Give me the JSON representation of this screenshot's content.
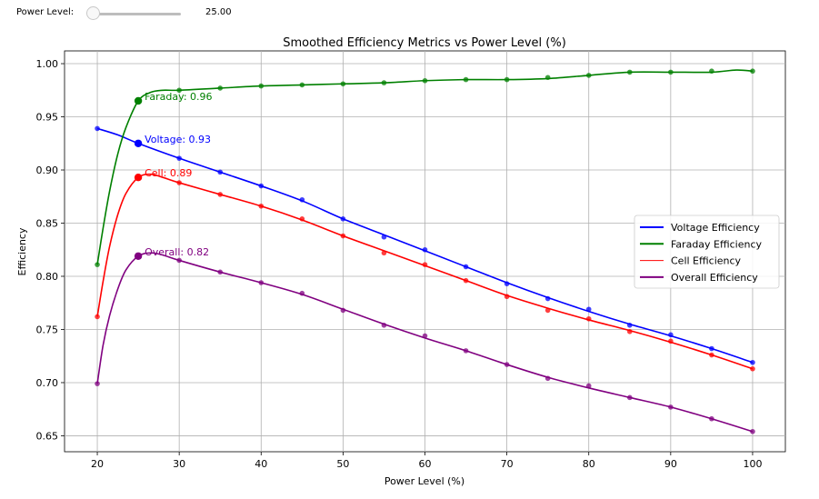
{
  "slider": {
    "label": "Power Level:",
    "value_text": "25.00",
    "value": 25,
    "min": 20,
    "max": 100
  },
  "chart_data": {
    "type": "line",
    "title": "Smoothed Efficiency Metrics vs Power Level (%)",
    "xlabel": "Power Level (%)",
    "ylabel": "Efficiency",
    "xlim": [
      16,
      104
    ],
    "ylim": [
      0.635,
      1.012
    ],
    "xticks": [
      20,
      30,
      40,
      50,
      60,
      70,
      80,
      90,
      100
    ],
    "xtick_labels": [
      "20",
      "30",
      "40",
      "50",
      "60",
      "70",
      "80",
      "90",
      "100"
    ],
    "yticks": [
      0.65,
      0.7,
      0.75,
      0.8,
      0.85,
      0.9,
      0.95,
      1.0
    ],
    "ytick_labels": [
      "0.65",
      "0.70",
      "0.75",
      "0.80",
      "0.85",
      "0.90",
      "0.95",
      "1.00"
    ],
    "grid": true,
    "legend_position": "center-right",
    "x": [
      20,
      25,
      30,
      35,
      40,
      45,
      50,
      55,
      60,
      65,
      70,
      75,
      80,
      85,
      90,
      95,
      100
    ],
    "series": [
      {
        "name": "Voltage Efficiency",
        "color": "#0000ff",
        "values": [
          0.939,
          0.925,
          0.911,
          0.898,
          0.885,
          0.872,
          0.854,
          0.837,
          0.825,
          0.809,
          0.793,
          0.779,
          0.769,
          0.754,
          0.745,
          0.732,
          0.719
        ],
        "smooth": [
          [
            20,
            0.939
          ],
          [
            22.5,
            0.933
          ],
          [
            25,
            0.925
          ],
          [
            30,
            0.911
          ],
          [
            35,
            0.898
          ],
          [
            40,
            0.885
          ],
          [
            45,
            0.871
          ],
          [
            50,
            0.854
          ],
          [
            55,
            0.839
          ],
          [
            60,
            0.824
          ],
          [
            65,
            0.809
          ],
          [
            70,
            0.794
          ],
          [
            75,
            0.78
          ],
          [
            80,
            0.767
          ],
          [
            85,
            0.755
          ],
          [
            90,
            0.744
          ],
          [
            95,
            0.732
          ],
          [
            100,
            0.719
          ]
        ]
      },
      {
        "name": "Faraday Efficiency",
        "color": "#008000",
        "values": [
          0.811,
          0.965,
          0.975,
          0.977,
          0.979,
          0.98,
          0.981,
          0.982,
          0.984,
          0.985,
          0.985,
          0.987,
          0.989,
          0.992,
          0.992,
          0.993,
          0.993
        ],
        "smooth": [
          [
            20,
            0.811
          ],
          [
            20.7,
            0.845
          ],
          [
            21.5,
            0.88
          ],
          [
            22.5,
            0.915
          ],
          [
            23.5,
            0.94
          ],
          [
            25,
            0.965
          ],
          [
            26.5,
            0.973
          ],
          [
            28,
            0.975
          ],
          [
            30,
            0.975
          ],
          [
            35,
            0.977
          ],
          [
            40,
            0.979
          ],
          [
            45,
            0.98
          ],
          [
            50,
            0.981
          ],
          [
            55,
            0.982
          ],
          [
            60,
            0.984
          ],
          [
            65,
            0.985
          ],
          [
            70,
            0.985
          ],
          [
            75,
            0.986
          ],
          [
            80,
            0.989
          ],
          [
            85,
            0.992
          ],
          [
            90,
            0.992
          ],
          [
            95,
            0.992
          ],
          [
            98,
            0.994
          ],
          [
            100,
            0.993
          ]
        ]
      },
      {
        "name": "Cell Efficiency",
        "color": "#ff0000",
        "values": [
          0.762,
          0.893,
          0.888,
          0.877,
          0.866,
          0.854,
          0.838,
          0.822,
          0.811,
          0.796,
          0.781,
          0.768,
          0.76,
          0.748,
          0.739,
          0.726,
          0.713
        ],
        "smooth": [
          [
            20,
            0.762
          ],
          [
            20.7,
            0.795
          ],
          [
            21.5,
            0.828
          ],
          [
            22.5,
            0.858
          ],
          [
            23.5,
            0.878
          ],
          [
            25,
            0.893
          ],
          [
            26.5,
            0.896
          ],
          [
            28,
            0.893
          ],
          [
            30,
            0.888
          ],
          [
            35,
            0.877
          ],
          [
            40,
            0.866
          ],
          [
            45,
            0.853
          ],
          [
            50,
            0.838
          ],
          [
            55,
            0.824
          ],
          [
            60,
            0.81
          ],
          [
            65,
            0.796
          ],
          [
            70,
            0.782
          ],
          [
            75,
            0.77
          ],
          [
            80,
            0.759
          ],
          [
            85,
            0.749
          ],
          [
            90,
            0.738
          ],
          [
            95,
            0.726
          ],
          [
            100,
            0.713
          ]
        ]
      },
      {
        "name": "Overall Efficiency",
        "color": "#800080",
        "values": [
          0.699,
          0.819,
          0.815,
          0.804,
          0.794,
          0.784,
          0.768,
          0.754,
          0.744,
          0.73,
          0.717,
          0.704,
          0.697,
          0.686,
          0.677,
          0.666,
          0.654
        ],
        "smooth": [
          [
            20,
            0.699
          ],
          [
            20.7,
            0.735
          ],
          [
            21.5,
            0.763
          ],
          [
            22.5,
            0.788
          ],
          [
            23.5,
            0.806
          ],
          [
            25,
            0.819
          ],
          [
            26.5,
            0.822
          ],
          [
            28,
            0.82
          ],
          [
            30,
            0.815
          ],
          [
            35,
            0.804
          ],
          [
            40,
            0.794
          ],
          [
            45,
            0.783
          ],
          [
            50,
            0.769
          ],
          [
            55,
            0.755
          ],
          [
            60,
            0.742
          ],
          [
            65,
            0.73
          ],
          [
            70,
            0.717
          ],
          [
            75,
            0.705
          ],
          [
            80,
            0.695
          ],
          [
            85,
            0.686
          ],
          [
            90,
            0.677
          ],
          [
            95,
            0.666
          ],
          [
            100,
            0.654
          ]
        ]
      }
    ],
    "annotations": [
      {
        "text": "Faraday: 0.96",
        "x": 25,
        "y": 0.965,
        "color": "#008000"
      },
      {
        "text": "Voltage: 0.93",
        "x": 25,
        "y": 0.925,
        "color": "#0000ff"
      },
      {
        "text": "Cell: 0.89",
        "x": 25,
        "y": 0.893,
        "color": "#ff0000"
      },
      {
        "text": "Overall: 0.82",
        "x": 25,
        "y": 0.819,
        "color": "#800080"
      }
    ]
  }
}
